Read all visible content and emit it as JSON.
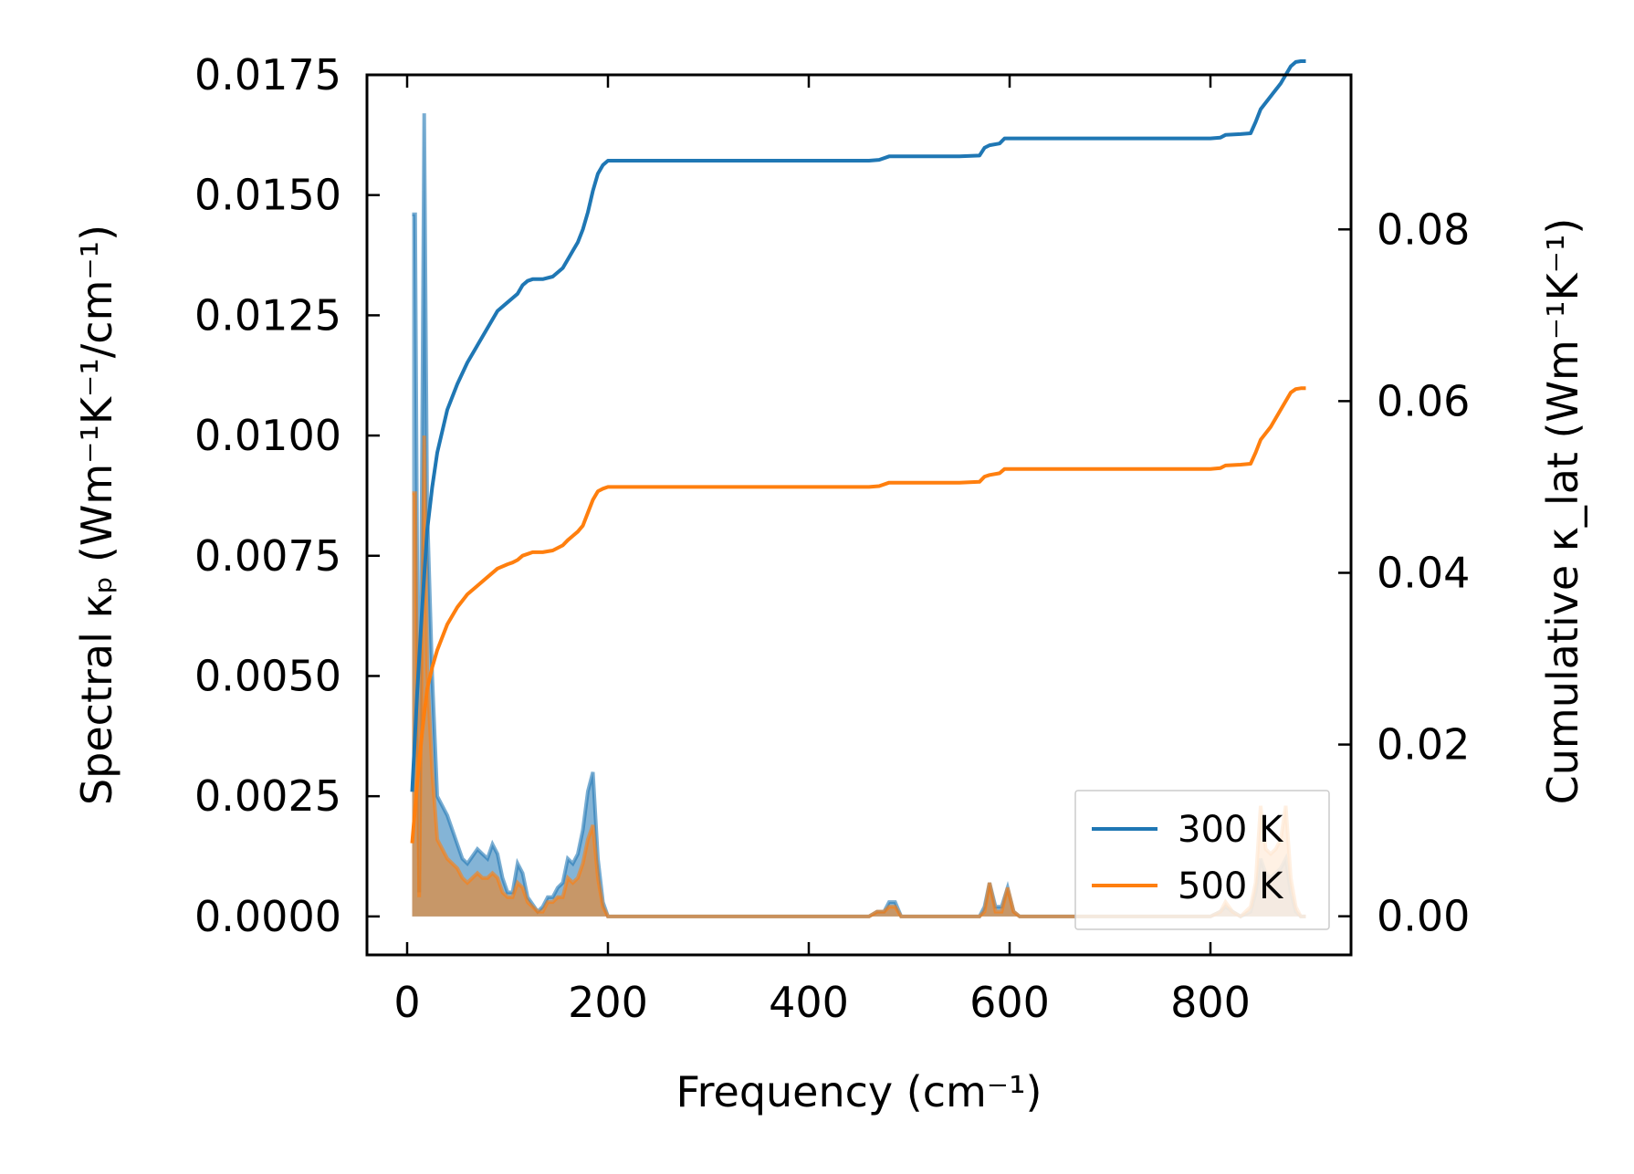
{
  "chart_data": {
    "type": "line",
    "xlabel": "Frequency (cm⁻¹)",
    "ylabel_left": "Spectral κₚ (Wm⁻¹K⁻¹/cm⁻¹)",
    "ylabel_right": "Cumulative κ_lat (Wm⁻¹K⁻¹)",
    "xlim": [
      -40,
      940
    ],
    "ylim_left": [
      -0.0008,
      0.0175
    ],
    "ylim_right": [
      -0.0045,
      0.098
    ],
    "x_ticks": [
      0,
      200,
      400,
      600,
      800
    ],
    "x_tick_labels": [
      "0",
      "200",
      "400",
      "600",
      "800"
    ],
    "y_left_ticks": [
      0,
      0.0025,
      0.005,
      0.0075,
      0.01,
      0.0125,
      0.015,
      0.0175
    ],
    "y_left_tick_labels": [
      "0.0000",
      "0.0025",
      "0.0050",
      "0.0075",
      "0.0100",
      "0.0125",
      "0.0150",
      "0.0175"
    ],
    "y_right_ticks": [
      0,
      0.02,
      0.04,
      0.06,
      0.08
    ],
    "y_right_tick_labels": [
      "0.00",
      "0.02",
      "0.04",
      "0.06",
      "0.08"
    ],
    "legend_position": "lower-right",
    "series": [
      {
        "name": "300 K",
        "color": "#1f77b4",
        "spectral_x": [
          5,
          8,
          12,
          17,
          20,
          25,
          30,
          35,
          40,
          50,
          55,
          60,
          70,
          75,
          80,
          85,
          90,
          95,
          100,
          105,
          110,
          115,
          120,
          130,
          135,
          140,
          145,
          150,
          155,
          160,
          165,
          170,
          175,
          180,
          185,
          190,
          195,
          200,
          210,
          460,
          468,
          475,
          480,
          486,
          492,
          570,
          575,
          580,
          586,
          592,
          598,
          604,
          610,
          800,
          810,
          815,
          822,
          830,
          840,
          845,
          850,
          855,
          860,
          865,
          870,
          875,
          880,
          885,
          890,
          895
        ],
        "spectral_y": [
          0.0146,
          0.0146,
          0.0005,
          0.0167,
          0.0085,
          0.005,
          0.0025,
          0.0023,
          0.0021,
          0.0015,
          0.0012,
          0.0011,
          0.0014,
          0.0013,
          0.0012,
          0.0015,
          0.0013,
          0.0008,
          0.0005,
          0.0005,
          0.0011,
          0.0009,
          0.0004,
          0.0001,
          0.0002,
          0.0004,
          0.0004,
          0.0006,
          0.0007,
          0.0012,
          0.0011,
          0.0013,
          0.0018,
          0.0026,
          0.003,
          0.0012,
          0.0003,
          0.0,
          0.0,
          0.0,
          0.0001,
          0.0001,
          0.0003,
          0.0003,
          0.0,
          0.0,
          0.0002,
          0.0007,
          0.0002,
          0.0002,
          0.0006,
          0.0001,
          0.0,
          0.0,
          0.0001,
          0.0002,
          0.0001,
          0.0,
          0.0001,
          0.0005,
          0.0012,
          0.0009,
          0.0008,
          0.0009,
          0.001,
          0.0012,
          0.0005,
          0.0001,
          0.0,
          0.0
        ],
        "cumulative_x": [
          5,
          10,
          15,
          20,
          25,
          30,
          40,
          50,
          60,
          70,
          80,
          90,
          100,
          105,
          110,
          115,
          120,
          125,
          135,
          145,
          155,
          160,
          165,
          170,
          175,
          180,
          185,
          190,
          195,
          200,
          210,
          230,
          300,
          400,
          460,
          470,
          480,
          500,
          550,
          570,
          575,
          580,
          590,
          595,
          600,
          620,
          700,
          800,
          810,
          815,
          830,
          840,
          845,
          850,
          860,
          870,
          875,
          880,
          885,
          890,
          895
        ],
        "cumulative_y": [
          0.0145,
          0.026,
          0.036,
          0.045,
          0.05,
          0.054,
          0.059,
          0.062,
          0.0645,
          0.0665,
          0.0685,
          0.0705,
          0.0715,
          0.072,
          0.0725,
          0.0735,
          0.074,
          0.0742,
          0.0742,
          0.0745,
          0.0755,
          0.0765,
          0.0775,
          0.0785,
          0.08,
          0.082,
          0.0845,
          0.0865,
          0.0875,
          0.088,
          0.088,
          0.088,
          0.088,
          0.088,
          0.088,
          0.0881,
          0.0885,
          0.0885,
          0.0885,
          0.0886,
          0.0895,
          0.0898,
          0.09,
          0.0906,
          0.0906,
          0.0906,
          0.0906,
          0.0906,
          0.0907,
          0.091,
          0.0911,
          0.0912,
          0.0925,
          0.094,
          0.0955,
          0.097,
          0.098,
          0.099,
          0.0995,
          0.0996,
          0.0996
        ]
      },
      {
        "name": "500 K",
        "color": "#ff7f0e",
        "spectral_x": [
          5,
          8,
          12,
          17,
          20,
          25,
          30,
          35,
          40,
          50,
          55,
          60,
          70,
          75,
          80,
          85,
          90,
          95,
          100,
          105,
          110,
          115,
          120,
          130,
          135,
          140,
          145,
          150,
          155,
          160,
          165,
          170,
          175,
          180,
          185,
          190,
          195,
          200,
          210,
          460,
          468,
          475,
          480,
          486,
          492,
          570,
          575,
          580,
          586,
          592,
          598,
          604,
          610,
          800,
          810,
          815,
          822,
          830,
          840,
          845,
          850,
          855,
          860,
          865,
          870,
          875,
          880,
          885,
          890,
          895
        ],
        "spectral_y": [
          0.0088,
          0.0088,
          0.0004,
          0.01,
          0.0051,
          0.003,
          0.0016,
          0.0014,
          0.0012,
          0.001,
          0.0008,
          0.0007,
          0.0009,
          0.0008,
          0.0008,
          0.0009,
          0.0008,
          0.0005,
          0.0004,
          0.0004,
          0.0007,
          0.0006,
          0.0003,
          0.0001,
          0.0001,
          0.0003,
          0.0003,
          0.0004,
          0.0004,
          0.0008,
          0.0007,
          0.0008,
          0.0011,
          0.0016,
          0.0019,
          0.0008,
          0.0002,
          0.0,
          0.0,
          0.0,
          0.0001,
          0.0001,
          0.0002,
          0.0002,
          0.0,
          0.0,
          0.0001,
          0.0007,
          0.0001,
          0.0001,
          0.0006,
          0.0001,
          0.0,
          0.0,
          0.0001,
          0.0003,
          0.0001,
          0.0,
          0.0002,
          0.0007,
          0.0023,
          0.0014,
          0.0013,
          0.0014,
          0.0016,
          0.0023,
          0.0008,
          0.0002,
          0.0,
          0.0
        ],
        "cumulative_x": [
          5,
          10,
          15,
          20,
          25,
          30,
          40,
          50,
          60,
          70,
          80,
          90,
          100,
          105,
          110,
          115,
          120,
          125,
          135,
          145,
          155,
          160,
          165,
          170,
          175,
          180,
          185,
          190,
          195,
          200,
          210,
          230,
          300,
          400,
          460,
          470,
          480,
          500,
          550,
          570,
          575,
          580,
          590,
          595,
          600,
          620,
          700,
          800,
          810,
          815,
          830,
          840,
          845,
          850,
          860,
          870,
          875,
          880,
          885,
          890,
          895
        ],
        "cumulative_y": [
          0.0085,
          0.0155,
          0.0215,
          0.0265,
          0.029,
          0.031,
          0.034,
          0.036,
          0.0375,
          0.0385,
          0.0395,
          0.0405,
          0.041,
          0.0412,
          0.0415,
          0.042,
          0.0422,
          0.0424,
          0.0424,
          0.0426,
          0.0432,
          0.0438,
          0.0443,
          0.0448,
          0.0455,
          0.047,
          0.0485,
          0.0495,
          0.0498,
          0.05,
          0.05,
          0.05,
          0.05,
          0.05,
          0.05,
          0.0501,
          0.0505,
          0.0505,
          0.0505,
          0.0506,
          0.0512,
          0.0514,
          0.0516,
          0.0521,
          0.0521,
          0.0521,
          0.0521,
          0.0521,
          0.0522,
          0.0525,
          0.0526,
          0.0527,
          0.054,
          0.0555,
          0.057,
          0.059,
          0.06,
          0.061,
          0.0614,
          0.0615,
          0.0615
        ]
      }
    ]
  }
}
